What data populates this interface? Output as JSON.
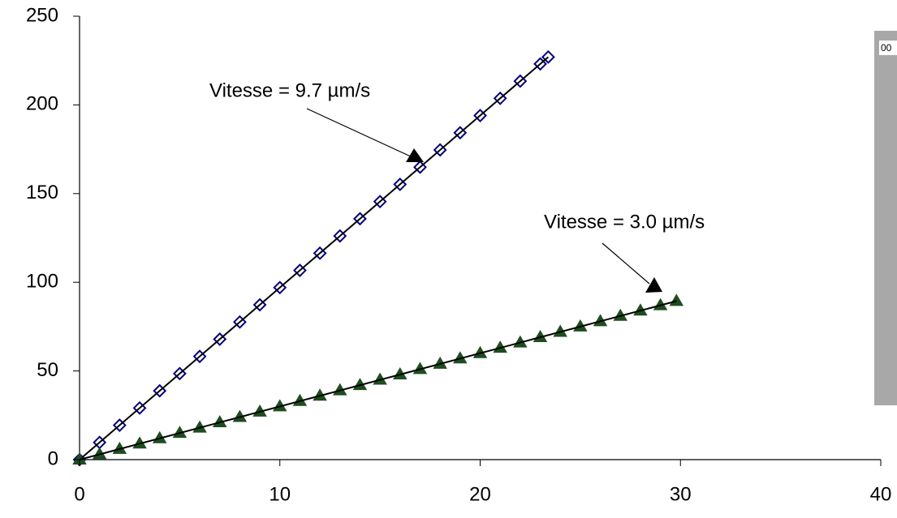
{
  "chart_data": {
    "type": "scatter",
    "xlim": [
      0,
      40
    ],
    "xticks": [
      0,
      10,
      20,
      30,
      40
    ],
    "ylim": [
      0,
      250
    ],
    "yticks": [
      0,
      50,
      100,
      150,
      200,
      250
    ],
    "series": [
      {
        "marker": "diamond",
        "color": "#000080",
        "x": [
          0,
          1,
          2,
          3,
          4,
          5,
          6,
          7,
          8,
          9,
          10,
          11,
          12,
          13,
          14,
          15,
          16,
          17,
          18,
          19,
          20,
          21,
          22,
          23,
          23.4
        ],
        "values": [
          0,
          9.7,
          19.4,
          29.1,
          38.8,
          48.5,
          58.2,
          67.9,
          77.6,
          87.3,
          97,
          106.7,
          116.4,
          126.1,
          135.8,
          145.5,
          155.2,
          164.9,
          174.6,
          184.3,
          194,
          203.7,
          213.4,
          223.1,
          227
        ]
      },
      {
        "marker": "triangle",
        "color": "#1e4d1e",
        "x": [
          0,
          1,
          2,
          3,
          4,
          5,
          6,
          7,
          8,
          9,
          10,
          11,
          12,
          13,
          14,
          15,
          16,
          17,
          18,
          19,
          20,
          21,
          22,
          23,
          24,
          25,
          26,
          27,
          28,
          29,
          29.8
        ],
        "values": [
          0,
          3,
          6,
          9,
          12,
          15,
          18,
          21,
          24,
          27,
          30,
          33,
          36,
          39,
          42,
          45,
          48,
          51,
          54,
          57,
          60,
          63,
          66,
          69,
          72,
          75,
          78,
          81,
          84,
          87,
          89.4
        ]
      }
    ],
    "annotations": [
      {
        "text": "Vitesse = 9.7 µm/s"
      },
      {
        "text": "Vitesse = 3.0 µm/s"
      }
    ],
    "inset_text": "00"
  }
}
